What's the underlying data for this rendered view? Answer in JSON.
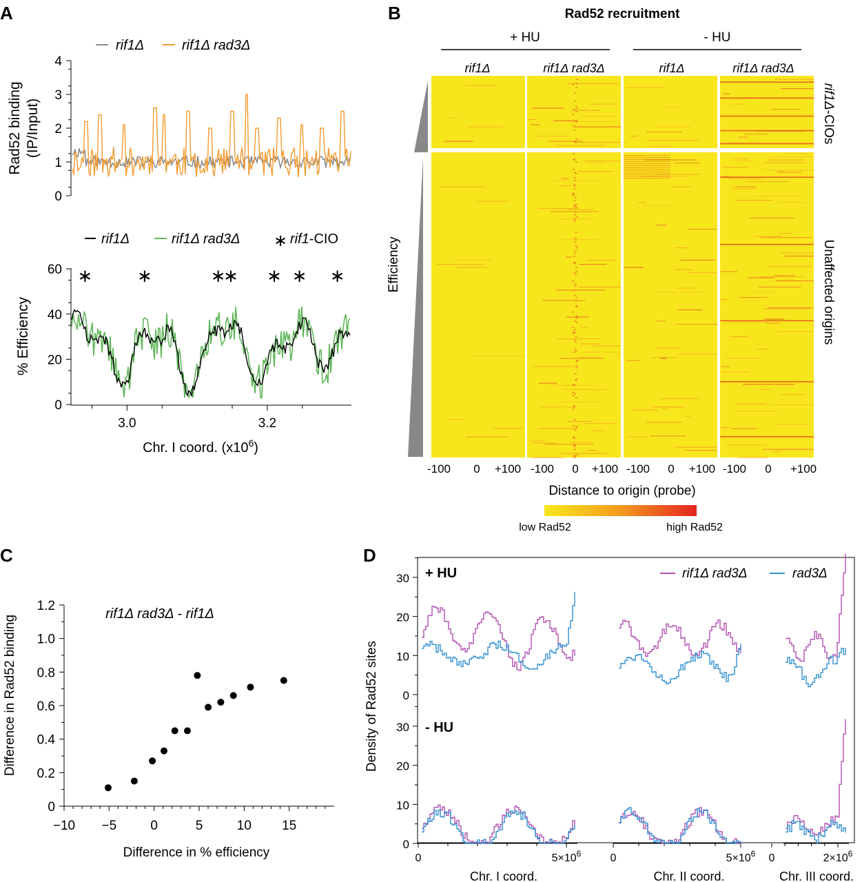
{
  "panels": {
    "a": "A",
    "b": "B",
    "c": "C",
    "d": "D"
  },
  "colors": {
    "grey": "#8c8c8c",
    "orange": "#f39a2d",
    "green": "#5fb65a",
    "black": "#000000",
    "magenta": "#b04fb0",
    "blue": "#2f8fcf",
    "heat_low": "#f6e51c",
    "heat_high": "#e42421",
    "wedge": "#888888"
  },
  "chart_data": [
    {
      "id": "A-top",
      "type": "line",
      "series": [
        {
          "name": "rif1Δ",
          "color": "grey"
        },
        {
          "name": "rif1Δ rad3Δ",
          "color": "orange"
        }
      ],
      "ylabel": [
        "Rad52 binding",
        "(IP/Input)"
      ],
      "ylim": [
        0,
        4
      ],
      "yticks": [
        "0",
        "1",
        "2",
        "3",
        "4"
      ],
      "xlim": [
        2.92,
        3.32
      ]
    },
    {
      "id": "A-bottom",
      "type": "line",
      "series": [
        {
          "name": "rif1Δ",
          "color": "black"
        },
        {
          "name": "rif1Δ rad3Δ",
          "color": "green"
        }
      ],
      "marker_legend": {
        "symbol": "∗",
        "label_italic": "rif1",
        "label_rest": "-CIO"
      },
      "ylabel": "% Efficiency",
      "ylim": [
        0,
        60
      ],
      "yticks": [
        "0",
        "20",
        "40",
        "60"
      ],
      "xlim": [
        2.92,
        3.32
      ],
      "xticks": [
        "3.0",
        "3.2"
      ],
      "xtick_values": [
        3.0,
        3.2
      ],
      "xlabel": "Chr. I coord. (x10",
      "xlabel_sup": "6",
      "xlabel_end": ")",
      "cio_x": [
        2.94,
        3.025,
        3.13,
        3.148,
        3.21,
        3.246,
        3.3
      ]
    },
    {
      "id": "B",
      "type": "heatmap",
      "title": "Rad52 recruitment",
      "conditions": [
        "+ HU",
        "- HU"
      ],
      "columns": [
        "rif1Δ",
        "rif1Δ rad3Δ",
        "rif1Δ",
        "rif1Δ rad3Δ"
      ],
      "row_groups": [
        {
          "label_italic": "rif1Δ",
          "label_rest": "-CIOs"
        },
        {
          "label": "Unaffected origins"
        }
      ],
      "wedge_label": "Efficiency",
      "xticks": [
        "-100",
        "0",
        "+100"
      ],
      "xlabel": "Distance to origin (probe)",
      "colorbar": {
        "low": "low Rad52",
        "high": "high Rad52"
      }
    },
    {
      "id": "C",
      "type": "scatter",
      "annotation": "rif1Δ rad3Δ - rif1Δ",
      "xlabel": "Difference in % efficiency",
      "ylabel": "Difference in Rad52 binding",
      "xlim": [
        -10,
        20
      ],
      "ylim": [
        0,
        1.2
      ],
      "xticks": [
        "−10",
        "−5",
        "0",
        "5",
        "10",
        "15"
      ],
      "yticks": [
        "0",
        "0.2",
        "0.4",
        "0.6",
        "0.8",
        "1.0",
        "1.2"
      ],
      "points": [
        {
          "x": -5.1,
          "y": 0.11
        },
        {
          "x": -2.2,
          "y": 0.15
        },
        {
          "x": -0.2,
          "y": 0.27
        },
        {
          "x": 1.1,
          "y": 0.33
        },
        {
          "x": 2.3,
          "y": 0.45
        },
        {
          "x": 3.7,
          "y": 0.45
        },
        {
          "x": 4.8,
          "y": 0.78
        },
        {
          "x": 6.0,
          "y": 0.59
        },
        {
          "x": 7.4,
          "y": 0.62
        },
        {
          "x": 8.8,
          "y": 0.66
        },
        {
          "x": 10.7,
          "y": 0.71
        },
        {
          "x": 14.4,
          "y": 0.75
        }
      ]
    },
    {
      "id": "D",
      "type": "line",
      "series": [
        {
          "name": "rif1Δ rad3Δ",
          "color": "magenta"
        },
        {
          "name": "rad3Δ",
          "color": "blue"
        }
      ],
      "conditions": [
        "+ HU",
        "- HU"
      ],
      "ylabel": "Density of Rad52 sites",
      "ylim": [
        0,
        35
      ],
      "yticks": [
        "0",
        "10",
        "20",
        "30"
      ],
      "chromosomes": [
        {
          "label": "Chr. I coord.",
          "xticks": [
            "0",
            "5×10"
          ],
          "xtick_sup": "6",
          "xmax_mb": 5.6
        },
        {
          "label": "Chr. II coord.",
          "xticks": [
            "0",
            "5×10"
          ],
          "xtick_sup": "6",
          "xmax_mb": 5.0
        },
        {
          "label": "Chr. III coord.",
          "xticks": [
            "0",
            "2×10"
          ],
          "xtick_sup": "6",
          "xmax_mb": 2.5
        }
      ]
    }
  ]
}
